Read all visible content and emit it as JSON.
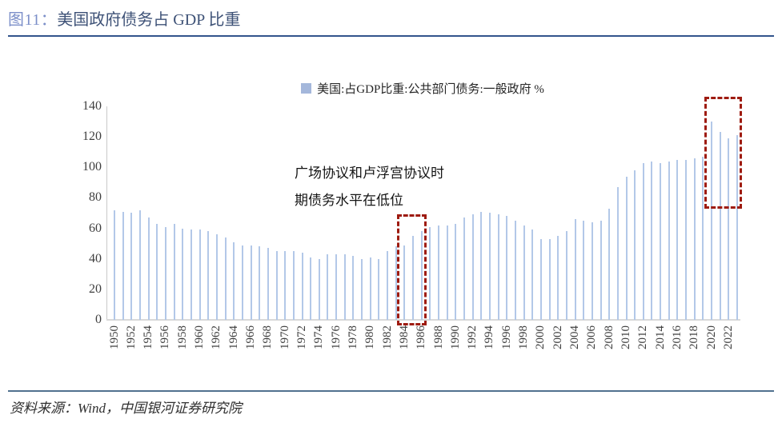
{
  "header": {
    "figure_label": "图11：",
    "title": "美国政府债务占 GDP 比重"
  },
  "legend": {
    "label": "美国:占GDP比重:公共部门债务:一般政府 %"
  },
  "annotation": {
    "line1": "广场协议和卢浮宫协议时",
    "line2": "期债务水平在低位"
  },
  "footer": {
    "source": "资料来源：Wind，中国银河证券研究院"
  },
  "colors": {
    "figure_label": "#7c8fc9",
    "title_text": "#3e5277",
    "rule_top": "#32548c",
    "rule_bottom": "#51718f",
    "bar": "#b3c8e8",
    "legend_marker": "#a4b7db",
    "highlight_box": "#9e1b10",
    "axis": "#c9c9c9",
    "tick_text": "#3f3f3f"
  },
  "chart_data": {
    "type": "bar",
    "title": "美国:占GDP比重:公共部门债务:一般政府 %",
    "ylabel": "",
    "xlabel": "",
    "ylim": [
      0,
      140
    ],
    "yticks": [
      0,
      20,
      40,
      60,
      80,
      100,
      120,
      140
    ],
    "xtick_interval": 2,
    "grid": false,
    "legend_position": "top-center",
    "years": [
      1950,
      1951,
      1952,
      1953,
      1954,
      1955,
      1956,
      1957,
      1958,
      1959,
      1960,
      1961,
      1962,
      1963,
      1964,
      1965,
      1966,
      1967,
      1968,
      1969,
      1970,
      1971,
      1972,
      1973,
      1974,
      1975,
      1976,
      1977,
      1978,
      1979,
      1980,
      1981,
      1982,
      1983,
      1984,
      1985,
      1986,
      1987,
      1988,
      1989,
      1990,
      1991,
      1992,
      1993,
      1994,
      1995,
      1996,
      1997,
      1998,
      1999,
      2000,
      2001,
      2002,
      2003,
      2004,
      2005,
      2006,
      2007,
      2008,
      2009,
      2010,
      2011,
      2012,
      2013,
      2014,
      2015,
      2016,
      2017,
      2018,
      2019,
      2020,
      2021,
      2022,
      2023
    ],
    "values": [
      72,
      71,
      70,
      72,
      67,
      63,
      61,
      63,
      60,
      59,
      59,
      58,
      56,
      54,
      51,
      49,
      49,
      48,
      47,
      45,
      45,
      45,
      44,
      41,
      40,
      43,
      43,
      43,
      42,
      40,
      41,
      40,
      45,
      48,
      49,
      55,
      58,
      61,
      62,
      62,
      63,
      67,
      69,
      71,
      70,
      69,
      68,
      65,
      62,
      59,
      53,
      53,
      55,
      58,
      66,
      65,
      64,
      65,
      73,
      87,
      94,
      98,
      103,
      104,
      103,
      104,
      105,
      105,
      106,
      107,
      130,
      123,
      119,
      121
    ],
    "highlights": [
      {
        "from_year": 1984,
        "to_year": 1986,
        "note": "广场协议和卢浮宫协议时期债务水平在低位"
      },
      {
        "from_year": 2020,
        "to_year": 2023,
        "note": ""
      }
    ]
  }
}
